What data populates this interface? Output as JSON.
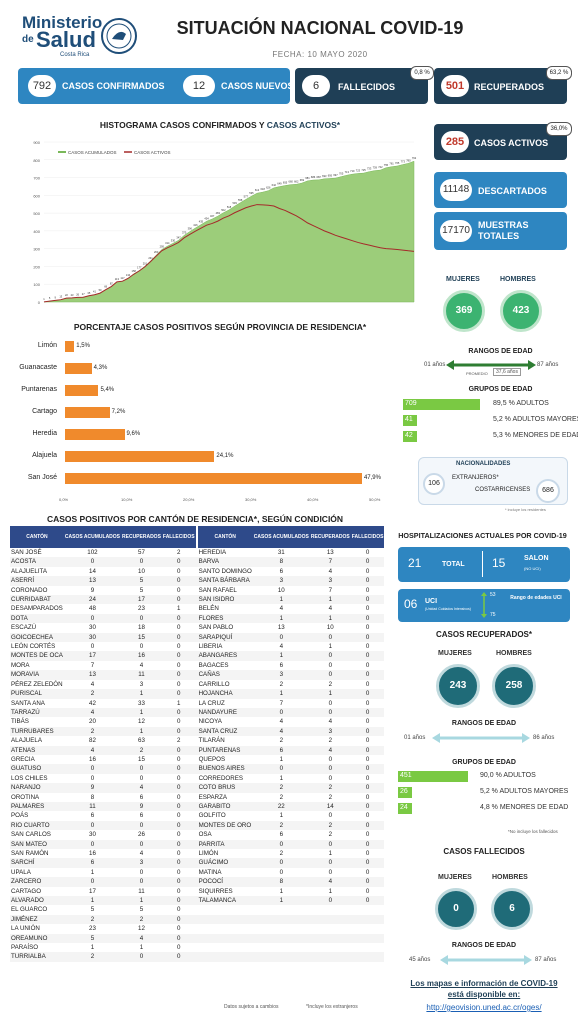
{
  "header": {
    "ministerio": "Ministerio",
    "de": "de",
    "salud": "Salud",
    "costa_rica": "Costa Rica",
    "title": "SITUACIÓN NACIONAL COVID-19",
    "fecha": "FECHA: 10 MAYO 2020"
  },
  "stats": {
    "confirmados": {
      "value": "792",
      "label": "CASOS CONFIRMADOS"
    },
    "nuevos": {
      "value": "12",
      "label": "CASOS NUEVOS"
    },
    "fallecidos": {
      "value": "6",
      "label": "FALLECIDOS",
      "pct": "0,8 %"
    },
    "recuperados": {
      "value": "501",
      "label": "RECUPERADOS",
      "pct": "63,2 %"
    },
    "activos": {
      "value": "285",
      "label": "CASOS ACTIVOS",
      "pct": "36,0%"
    },
    "descartados": {
      "value": "11148",
      "label": "DESCARTADOS"
    },
    "muestras": {
      "value": "17170",
      "label": "MUESTRAS TOTALES"
    }
  },
  "histogram": {
    "title_a": "HISTOGRAMA CASOS CONFIRMADOS Y ",
    "title_b": "CASOS ACTIVOS*",
    "legend_acum": "CASOS ACUMULADOS",
    "legend_act": "CASOS ACTIVOS",
    "yticks": [
      "900",
      "800",
      "700",
      "600",
      "500",
      "400",
      "300",
      "200",
      "100",
      "0"
    ]
  },
  "chart_data": {
    "type": "area",
    "title": "HISTOGRAMA CASOS CONFIRMADOS Y CASOS ACTIVOS*",
    "ylim": [
      0,
      900
    ],
    "series": [
      {
        "name": "CASOS ACUMULADOS",
        "values": [
          1,
          5,
          9,
          13,
          22,
          23,
          26,
          27,
          35,
          41,
          50,
          69,
          87,
          113,
          117,
          134,
          158,
          177,
          201,
          231,
          263,
          295,
          314,
          330,
          347,
          375,
          396,
          416,
          435,
          454,
          467,
          483,
          502,
          518,
          539,
          558,
          577,
          595,
          612,
          618,
          626,
          642,
          649,
          655,
          660,
          662,
          669,
          681,
          686,
          687,
          693,
          695,
          697,
          705,
          713,
          719,
          723,
          725,
          733,
          739,
          742,
          755,
          761,
          765,
          773,
          780,
          792
        ]
      },
      {
        "name": "CASOS ACTIVOS",
        "values": [
          1,
          5,
          9,
          13,
          22,
          23,
          26,
          27,
          35,
          41,
          50,
          69,
          87,
          113,
          117,
          133,
          156,
          175,
          198,
          227,
          258,
          288,
          305,
          319,
          335,
          361,
          380,
          398,
          415,
          432,
          442,
          455,
          472,
          485,
          502,
          516,
          530,
          540,
          548,
          546,
          544,
          540,
          526,
          515,
          500,
          485,
          466,
          445,
          430,
          415,
          400,
          388,
          375,
          365,
          355,
          345,
          335,
          327,
          320,
          312,
          305,
          300,
          298,
          295,
          292,
          288,
          285
        ]
      }
    ]
  },
  "provincias": {
    "title": "PORCENTAJE CASOS POSITIVOS SEGÚN PROVINCIA DE RESIDENCIA*",
    "items": [
      {
        "name": "Limón",
        "pct": 1.5,
        "label": "1,5%"
      },
      {
        "name": "Guanacaste",
        "pct": 4.3,
        "label": "4,3%"
      },
      {
        "name": "Puntarenas",
        "pct": 5.4,
        "label": "5,4%"
      },
      {
        "name": "Cartago",
        "pct": 7.2,
        "label": "7,2%"
      },
      {
        "name": "Heredia",
        "pct": 9.6,
        "label": "9,6%"
      },
      {
        "name": "Alajuela",
        "pct": 24.1,
        "label": "24,1%"
      },
      {
        "name": "San José",
        "pct": 47.9,
        "label": "47,9%"
      }
    ],
    "xticks": [
      "0,0%",
      "10,0%",
      "20,0%",
      "30,0%",
      "40,0%",
      "50,0%"
    ]
  },
  "edad": {
    "title": "RANGOS DE EDAD",
    "min": "01 años",
    "max": "87 años",
    "prom_label": "PROMEDIO",
    "prom": "37,6 años",
    "grupos_title": "GRUPOS DE EDAD",
    "grupos": [
      {
        "n": "709",
        "pct": "89,5 %",
        "label": "ADULTOS",
        "frac": 0.895
      },
      {
        "n": "41",
        "pct": "5,2 %",
        "label": "ADULTOS MAYORES",
        "frac": 0.052
      },
      {
        "n": "42",
        "pct": "5,3 %",
        "label": "MENORES DE EDAD",
        "frac": 0.053
      }
    ],
    "mujeres_label": "MUJERES",
    "hombres_label": "HOMBRES",
    "mujeres": "369",
    "hombres": "423",
    "nac_title": "NACIONALIDADES",
    "extranjeros": "106",
    "extranjeros_label": "EXTRANJEROS*",
    "costarricenses": "686",
    "costarricenses_label": "COSTARRICENSES",
    "nota": "* incluye los residentes"
  },
  "tabla": {
    "title": "CASOS POSITIVOS POR CANTÓN DE RESIDENCIA*, SEGÚN CONDICIÓN",
    "headers": [
      "CANTÓN",
      "CASOS ACUMULADOS",
      "RECUPERADOS",
      "FALLECIDOS"
    ],
    "left": [
      [
        "SAN JOSÉ",
        "102",
        "57",
        "2"
      ],
      [
        "ACOSTA",
        "0",
        "0",
        "0"
      ],
      [
        "ALAJUELITA",
        "14",
        "10",
        "0"
      ],
      [
        "ASERRÍ",
        "13",
        "5",
        "0"
      ],
      [
        "CORONADO",
        "9",
        "5",
        "0"
      ],
      [
        "CURRIDABAT",
        "24",
        "17",
        "0"
      ],
      [
        "DESAMPARADOS",
        "48",
        "23",
        "1"
      ],
      [
        "DOTA",
        "0",
        "0",
        "0"
      ],
      [
        "ESCAZÚ",
        "30",
        "18",
        "0"
      ],
      [
        "GOICOECHEA",
        "30",
        "15",
        "0"
      ],
      [
        "LEÓN CORTÉS",
        "0",
        "0",
        "0"
      ],
      [
        "MONTES DE OCA",
        "17",
        "16",
        "0"
      ],
      [
        "MORA",
        "7",
        "4",
        "0"
      ],
      [
        "MORAVIA",
        "13",
        "11",
        "0"
      ],
      [
        "PÉREZ ZELEDÓN",
        "4",
        "3",
        "0"
      ],
      [
        "PURISCAL",
        "2",
        "1",
        "0"
      ],
      [
        "SANTA ANA",
        "42",
        "33",
        "1"
      ],
      [
        "TARRAZÚ",
        "4",
        "1",
        "0"
      ],
      [
        "TIBÁS",
        "20",
        "12",
        "0"
      ],
      [
        "TURRUBARES",
        "2",
        "1",
        "0"
      ],
      [
        "ALAJUELA",
        "82",
        "63",
        "2"
      ],
      [
        "ATENAS",
        "4",
        "2",
        "0"
      ],
      [
        "GRECIA",
        "16",
        "15",
        "0"
      ],
      [
        "GUATUSO",
        "0",
        "0",
        "0"
      ],
      [
        "LOS CHILES",
        "0",
        "0",
        "0"
      ],
      [
        "NARANJO",
        "9",
        "4",
        "0"
      ],
      [
        "OROTINA",
        "8",
        "6",
        "0"
      ],
      [
        "PALMARES",
        "11",
        "9",
        "0"
      ],
      [
        "POÁS",
        "6",
        "6",
        "0"
      ],
      [
        "RIO CUARTO",
        "0",
        "0",
        "0"
      ],
      [
        "SAN CARLOS",
        "30",
        "26",
        "0"
      ],
      [
        "SAN MATEO",
        "0",
        "0",
        "0"
      ],
      [
        "SAN RAMÓN",
        "16",
        "4",
        "0"
      ],
      [
        "SARCHÍ",
        "6",
        "3",
        "0"
      ],
      [
        "UPALA",
        "1",
        "0",
        "0"
      ],
      [
        "ZARCERO",
        "0",
        "0",
        "0"
      ],
      [
        "CARTAGO",
        "17",
        "11",
        "0"
      ],
      [
        "ALVARADO",
        "1",
        "1",
        "0"
      ],
      [
        "EL GUARCO",
        "5",
        "5",
        "0"
      ],
      [
        "JIMÉNEZ",
        "2",
        "2",
        "0"
      ],
      [
        "LA UNIÓN",
        "23",
        "12",
        "0"
      ],
      [
        "OREAMUNO",
        "5",
        "4",
        "0"
      ],
      [
        "PARAÍSO",
        "1",
        "1",
        "0"
      ],
      [
        "TURRIALBA",
        "2",
        "0",
        "0"
      ]
    ],
    "right": [
      [
        "HEREDIA",
        "31",
        "13",
        "0"
      ],
      [
        "BARVA",
        "8",
        "7",
        "0"
      ],
      [
        "SANTO DOMINGO",
        "6",
        "4",
        "0"
      ],
      [
        "SANTA BÁRBARA",
        "3",
        "3",
        "0"
      ],
      [
        "SAN RAFAEL",
        "10",
        "7",
        "0"
      ],
      [
        "SAN ISIDRO",
        "1",
        "1",
        "0"
      ],
      [
        "BELÉN",
        "4",
        "4",
        "0"
      ],
      [
        "FLORES",
        "1",
        "1",
        "0"
      ],
      [
        "SAN PABLO",
        "13",
        "10",
        "0"
      ],
      [
        "SARAPIQUÍ",
        "0",
        "0",
        "0"
      ],
      [
        "LIBERIA",
        "4",
        "1",
        "0"
      ],
      [
        "ABANGARES",
        "1",
        "0",
        "0"
      ],
      [
        "BAGACES",
        "6",
        "0",
        "0"
      ],
      [
        "CAÑAS",
        "3",
        "0",
        "0"
      ],
      [
        "CARRILLO",
        "2",
        "2",
        "0"
      ],
      [
        "HOJANCHA",
        "1",
        "1",
        "0"
      ],
      [
        "LA CRUZ",
        "7",
        "0",
        "0"
      ],
      [
        "NANDAYURE",
        "0",
        "0",
        "0"
      ],
      [
        "NICOYA",
        "4",
        "4",
        "0"
      ],
      [
        "SANTA CRUZ",
        "4",
        "3",
        "0"
      ],
      [
        "TILARÁN",
        "2",
        "2",
        "0"
      ],
      [
        "PUNTARENAS",
        "6",
        "4",
        "0"
      ],
      [
        "QUEPOS",
        "1",
        "0",
        "0"
      ],
      [
        "BUENOS AIRES",
        "0",
        "0",
        "0"
      ],
      [
        "CORREDORES",
        "1",
        "0",
        "0"
      ],
      [
        "COTO BRUS",
        "2",
        "2",
        "0"
      ],
      [
        "ESPARZA",
        "2",
        "2",
        "0"
      ],
      [
        "GARABITO",
        "22",
        "14",
        "0"
      ],
      [
        "GOLFITO",
        "1",
        "0",
        "0"
      ],
      [
        "MONTES DE ORO",
        "2",
        "2",
        "0"
      ],
      [
        "OSA",
        "6",
        "2",
        "0"
      ],
      [
        "PARRITA",
        "0",
        "0",
        "0"
      ],
      [
        "LIMÓN",
        "2",
        "1",
        "0"
      ],
      [
        "GUÁCIMO",
        "0",
        "0",
        "0"
      ],
      [
        "MATINA",
        "0",
        "0",
        "0"
      ],
      [
        "POCOCÍ",
        "8",
        "4",
        "0"
      ],
      [
        "SIQUIRRES",
        "1",
        "1",
        "0"
      ],
      [
        "TALAMANCA",
        "1",
        "0",
        "0"
      ]
    ],
    "prov_labels": [
      "SAN JOSÉ",
      "ALAJUELA",
      "CARTAGO",
      "HEREDIA",
      "GUANACASTE",
      "PUNTARENAS",
      "LIMÓN"
    ],
    "nota1": "Datos sujetos a cambios",
    "nota2": "*Incluye los extranjeros"
  },
  "hosp": {
    "title": "HOSPITALIZACIONES ACTUALES POR COVID-19",
    "total": "21",
    "total_label": "TOTAL",
    "salon": "15",
    "salon_label": "SALON",
    "salon_sub": "(NO UCI)",
    "uci": "06",
    "uci_label": "UCI",
    "uci_sub": "(Unidad Cuidados Intensivos)",
    "uci_max": "53",
    "uci_min": "75",
    "uci_rango": "Rango de edades UCI"
  },
  "recuperados": {
    "title": "CASOS RECUPERADOS*",
    "mujeres_label": "MUJERES",
    "hombres_label": "HOMBRES",
    "mujeres": "243",
    "hombres": "258",
    "rango_title": "RANGOS DE EDAD",
    "min": "01 años",
    "max": "86 años",
    "grupos_title": "GRUPOS DE EDAD",
    "grupos": [
      {
        "n": "451",
        "pct": "90,0 %",
        "label": "ADULTOS",
        "frac": 0.9
      },
      {
        "n": "26",
        "pct": "5,2 %",
        "label": "ADULTOS MAYORES",
        "frac": 0.052
      },
      {
        "n": "24",
        "pct": "4,8 %",
        "label": "MENORES DE EDAD",
        "frac": 0.048
      }
    ],
    "nota": "*No incluye los fallecidos"
  },
  "fallecidos": {
    "title": "CASOS FALLECIDOS",
    "mujeres_label": "MUJERES",
    "hombres_label": "HOMBRES",
    "mujeres": "0",
    "hombres": "6",
    "rango_title": "RANGOS DE EDAD",
    "min": "45 años",
    "max": "87 años"
  },
  "footer": {
    "line1": "Los mapas e información de COVID-19",
    "line2": "está disponible en:",
    "url": "http://geovision.uned.ac.cr/oges/"
  },
  "colors": {
    "blue": "#2e86c1",
    "dark": "#1f3f56",
    "orange": "#f08a2c",
    "green": "#7ac943",
    "teal": "#1f6b78"
  }
}
